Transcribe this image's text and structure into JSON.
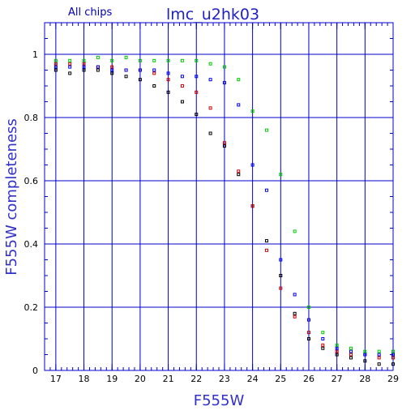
{
  "chart_data": {
    "type": "scatter",
    "title": "lmc_u2hk03",
    "subtitle": "All chips",
    "xlabel": "F555W",
    "ylabel": "F555W completeness",
    "xlim": [
      16.6,
      29
    ],
    "ylim": [
      0,
      1.1
    ],
    "xticks": [
      17,
      18,
      19,
      20,
      21,
      22,
      23,
      24,
      25,
      26,
      27,
      28,
      29
    ],
    "yticks": [
      0,
      0.2,
      0.4,
      0.6,
      0.8,
      1
    ],
    "ytick_labels": [
      "0",
      "0.2",
      "0.4",
      "0.6",
      "0.8",
      "1"
    ],
    "grid": true,
    "colors": {
      "frame": "#0000cc",
      "grid": "#0000cc",
      "black": "#000000",
      "red": "#cc0000",
      "blue": "#0000ee",
      "green": "#00cc00"
    },
    "series": [
      {
        "color": "black",
        "x": [
          17,
          17.5,
          18,
          18.5,
          19,
          19.5,
          20,
          20.5,
          21,
          21.5,
          22,
          22.5,
          23,
          23.5,
          24,
          24.5,
          25,
          25.5,
          26,
          26.5,
          27,
          27.5,
          28,
          28.5,
          29
        ],
        "y": [
          0.95,
          0.94,
          0.95,
          0.95,
          0.94,
          0.93,
          0.92,
          0.9,
          0.88,
          0.85,
          0.81,
          0.75,
          0.71,
          0.62,
          0.52,
          0.41,
          0.3,
          0.18,
          0.1,
          0.07,
          0.05,
          0.04,
          0.03,
          0.02,
          0.02
        ]
      },
      {
        "color": "red",
        "x": [
          17,
          17.5,
          18,
          18.5,
          19,
          19.5,
          20,
          20.5,
          21,
          21.5,
          22,
          22.5,
          23,
          23.5,
          24,
          24.5,
          25,
          25.5,
          26,
          26.5,
          27,
          27.5,
          28,
          28.5,
          29
        ],
        "y": [
          0.97,
          0.97,
          0.97,
          0.96,
          0.96,
          0.95,
          0.95,
          0.94,
          0.92,
          0.9,
          0.88,
          0.83,
          0.72,
          0.63,
          0.52,
          0.38,
          0.26,
          0.17,
          0.12,
          0.08,
          0.06,
          0.05,
          0.05,
          0.04,
          0.04
        ]
      },
      {
        "color": "blue",
        "x": [
          17,
          17.5,
          18,
          18.5,
          19,
          19.5,
          20,
          20.5,
          21,
          21.5,
          22,
          22.5,
          23,
          23.5,
          24,
          24.5,
          25,
          25.5,
          26,
          26.5,
          27,
          27.5,
          28,
          28.5,
          29
        ],
        "y": [
          0.96,
          0.96,
          0.96,
          0.96,
          0.95,
          0.95,
          0.95,
          0.95,
          0.94,
          0.93,
          0.93,
          0.92,
          0.91,
          0.84,
          0.65,
          0.57,
          0.35,
          0.24,
          0.16,
          0.1,
          0.07,
          0.06,
          0.05,
          0.05,
          0.05
        ]
      },
      {
        "color": "green",
        "x": [
          17,
          17.5,
          18,
          18.5,
          19,
          19.5,
          20,
          20.5,
          21,
          21.5,
          22,
          22.5,
          23,
          23.5,
          24,
          24.5,
          25,
          25.5,
          26,
          26.5,
          27,
          27.5,
          28,
          28.5,
          29
        ],
        "y": [
          0.98,
          0.98,
          0.98,
          0.99,
          0.98,
          0.99,
          0.98,
          0.98,
          0.98,
          0.98,
          0.98,
          0.97,
          0.96,
          0.92,
          0.82,
          0.76,
          0.62,
          0.44,
          0.2,
          0.12,
          0.08,
          0.07,
          0.06,
          0.06,
          0.06
        ]
      }
    ]
  }
}
